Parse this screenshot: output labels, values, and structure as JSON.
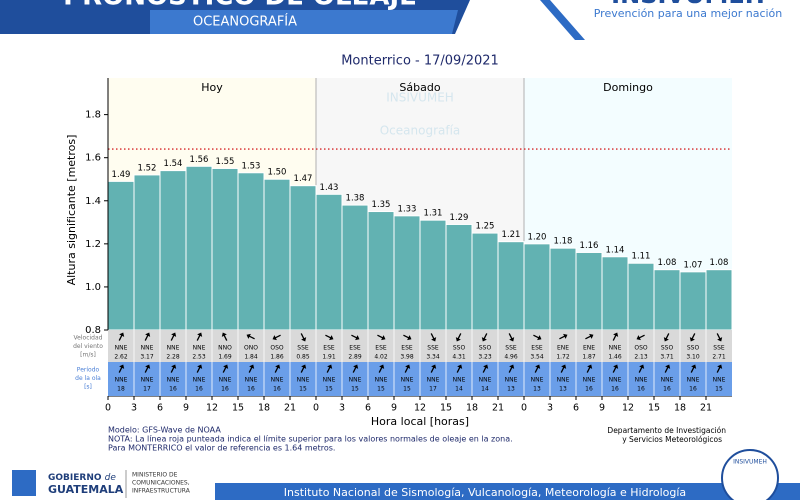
{
  "header": {
    "title": "PRONÓSTICO DE OLEAJE",
    "section": "OCEANOGRAFÍA",
    "brand": "INSIVUMEH",
    "slogan": "Prevención para una mejor nación"
  },
  "chart_data": {
    "type": "bar",
    "title": "Monterrico  -  17/09/2021",
    "y_label": "Altura significante [metros]",
    "x_label": "Hora local [horas]",
    "days": [
      {
        "label": "Hoy",
        "start": 0,
        "end": 24,
        "color": "#fffdf0"
      },
      {
        "label": "Sábado",
        "start": 24,
        "end": 48,
        "color": "#f7f7f7"
      },
      {
        "label": "Domingo",
        "start": 48,
        "end": 72,
        "color": "#f3fdff"
      }
    ],
    "watermark": [
      "INSIVUMEH",
      "Oceanografía"
    ],
    "x": [
      0,
      3,
      6,
      9,
      12,
      15,
      18,
      21,
      24,
      27,
      30,
      33,
      36,
      39,
      42,
      45,
      48,
      51,
      54,
      57,
      60,
      63,
      66,
      69
    ],
    "bar_width": 3,
    "values": [
      1.49,
      1.52,
      1.54,
      1.56,
      1.55,
      1.53,
      1.5,
      1.47,
      1.43,
      1.38,
      1.35,
      1.33,
      1.31,
      1.29,
      1.25,
      1.21,
      1.2,
      1.18,
      1.16,
      1.14,
      1.11,
      1.08,
      1.07,
      1.08
    ],
    "value_labels": [
      "1.49",
      "1.52",
      "1.54",
      "1.56",
      "1.55",
      "1.53",
      "1.50",
      "1.47",
      "1.43",
      "1.38",
      "1.35",
      "1.33",
      "1.31",
      "1.29",
      "1.25",
      "1.21",
      "1.20",
      "1.18",
      "1.16",
      "1.14",
      "1.11",
      "1.08",
      "1.07",
      "1.08"
    ],
    "color": "#62b2b2",
    "threshold": {
      "value": 1.64,
      "color": "#d62728"
    },
    "xlim": [
      0,
      72
    ],
    "xticks": [
      0,
      3,
      6,
      9,
      12,
      15,
      18,
      21,
      {
        "value": 24,
        "label": "0"
      },
      {
        "value": 27,
        "label": "3"
      },
      {
        "value": 30,
        "label": "6"
      },
      {
        "value": 33,
        "label": "9"
      },
      {
        "value": 36,
        "label": "12"
      },
      {
        "value": 39,
        "label": "15"
      },
      {
        "value": 42,
        "label": "18"
      },
      {
        "value": 45,
        "label": "21"
      },
      {
        "value": 48,
        "label": "0"
      },
      {
        "value": 51,
        "label": "3"
      },
      {
        "value": 54,
        "label": "6"
      },
      {
        "value": 57,
        "label": "9"
      },
      {
        "value": 60,
        "label": "12"
      },
      {
        "value": 63,
        "label": "15"
      },
      {
        "value": 66,
        "label": "18"
      },
      {
        "value": 69,
        "label": "21"
      }
    ],
    "ylim": [
      0.8,
      1.97
    ],
    "yticks": [
      0.8,
      {
        "value": 1,
        "label": "1.0"
      },
      1.2,
      1.4,
      1.6,
      1.8
    ],
    "wind": {
      "label": [
        "Velocidad",
        "del viento",
        "[m/s]"
      ],
      "color": "#d9d9d9",
      "directions": [
        "NNE",
        "NNE",
        "NNE",
        "NNE",
        "NNO",
        "ONO",
        "OSO",
        "SSE",
        "ESE",
        "ESE",
        "ESE",
        "ESE",
        "SSE",
        "SSO",
        "SSO",
        "SSE",
        "ESE",
        "ENE",
        "ENE",
        "NNE",
        "OSO",
        "SSO",
        "SSO",
        "SSE"
      ],
      "values": [
        2.62,
        3.17,
        2.28,
        2.53,
        1.69,
        1.84,
        1.86,
        0.85,
        1.91,
        2.89,
        4.02,
        3.98,
        3.34,
        4.31,
        3.23,
        4.96,
        3.54,
        1.72,
        1.87,
        1.46,
        2.13,
        3.71,
        3.1,
        2.71
      ],
      "value_labels": [
        "2.62",
        "3.17",
        "2.28",
        "2.53",
        "1.69",
        "1.84",
        "1.86",
        "0.85",
        "1.91",
        "2.89",
        "4.02",
        "3.98",
        "3.34",
        "4.31",
        "3.23",
        "4.96",
        "3.54",
        "1.72",
        "1.87",
        "1.46",
        "2.13",
        "3.71",
        "3.10",
        "2.71"
      ]
    },
    "waves": {
      "label": [
        "Período",
        "de la ola",
        "[s]"
      ],
      "color": "#6a9ee9",
      "directions": [
        "NNE",
        "NNE",
        "NNE",
        "NNE",
        "NNE",
        "NNE",
        "NNE",
        "NNE",
        "NNE",
        "NNE",
        "NNE",
        "NNE",
        "NNE",
        "NNE",
        "NNE",
        "NNE",
        "NNE",
        "NNE",
        "NNE",
        "NNE",
        "NNE",
        "NNE",
        "NNE",
        "NNE"
      ],
      "values": [
        18,
        17,
        16,
        16,
        16,
        16,
        16,
        15,
        15,
        15,
        15,
        15,
        17,
        14,
        14,
        13,
        13,
        13,
        16,
        16,
        16,
        16,
        16,
        15
      ]
    },
    "notes": [
      "Modelo: GFS-Wave de NOAA",
      "NOTA: La línea roja punteada indica el límite superior para los valores normales de oleaje en la zona.",
      "Para MONTERRICO el valor de referencia es 1.64 metros."
    ],
    "department": [
      "Departamento de Investigación",
      "y Servicios Meteorológicos"
    ]
  },
  "footer": {
    "government": [
      "GOBIERNO",
      "de",
      "GUATEMALA"
    ],
    "ministry": [
      "MINISTERIO DE",
      "COMUNICACIONES,",
      "INFRAESTRUCTURA"
    ],
    "institute": "Instituto Nacional de Sismología, Vulcanología, Meteorología e Hidrología",
    "seal": "INSIVUMEH"
  }
}
